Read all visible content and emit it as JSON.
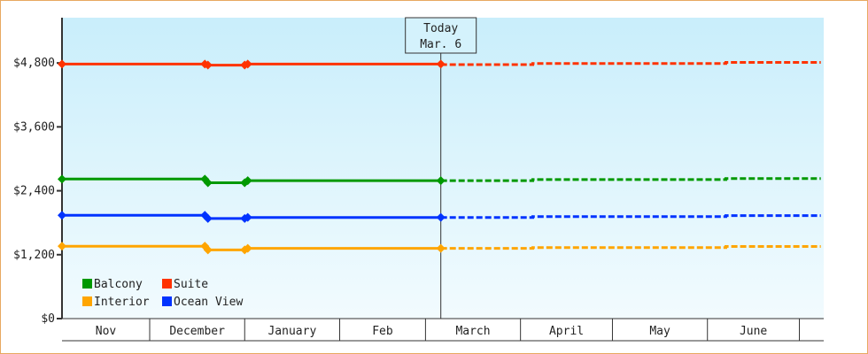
{
  "chart_data": {
    "type": "line",
    "title": "",
    "xlabel": "",
    "ylabel": "",
    "ylim": [
      0,
      5650
    ],
    "yticks": [
      0,
      1200,
      2400,
      3600,
      4800
    ],
    "ytick_labels": [
      "$0",
      "$1,200",
      "$2,400",
      "$3,600",
      "$4,800"
    ],
    "xtick_labels": [
      "Nov",
      "December",
      "January",
      "Feb",
      "March",
      "April",
      "May",
      "June"
    ],
    "xrange": [
      "Nov 1",
      "Jul 8"
    ],
    "grid": false,
    "legend_placement": "bottom-left",
    "annotation": {
      "line1": "Today",
      "line2": "Mar. 6",
      "date": "Mar 6"
    },
    "background": {
      "top": "#c9eefb",
      "bottom": "#f2fbfe"
    },
    "series": [
      {
        "name": "Balcony",
        "color": "#009900",
        "actual": [
          [
            "Nov 1",
            2620
          ],
          [
            "Dec 19",
            2620
          ],
          [
            "Dec 20",
            2550
          ],
          [
            "Jan 1",
            2550
          ],
          [
            "Jan 2",
            2590
          ],
          [
            "Mar 6",
            2590
          ]
        ],
        "projected": [
          [
            "Mar 6",
            2590
          ],
          [
            "Apr 5",
            2590
          ],
          [
            "Apr 5",
            2610
          ],
          [
            "Jun 7",
            2610
          ],
          [
            "Jun 7",
            2630
          ],
          [
            "Jul 8",
            2630
          ]
        ]
      },
      {
        "name": "Suite",
        "color": "#ff3300",
        "actual": [
          [
            "Nov 1",
            4780
          ],
          [
            "Dec 19",
            4780
          ],
          [
            "Dec 20",
            4760
          ],
          [
            "Jan 1",
            4760
          ],
          [
            "Jan 2",
            4780
          ],
          [
            "Mar 6",
            4780
          ]
        ],
        "projected": [
          [
            "Mar 6",
            4770
          ],
          [
            "Apr 5",
            4770
          ],
          [
            "Apr 5",
            4790
          ],
          [
            "Jun 7",
            4790
          ],
          [
            "Jun 7",
            4810
          ],
          [
            "Jul 8",
            4810
          ]
        ]
      },
      {
        "name": "Interior",
        "color": "#ffa500",
        "actual": [
          [
            "Nov 1",
            1360
          ],
          [
            "Dec 19",
            1360
          ],
          [
            "Dec 20",
            1290
          ],
          [
            "Jan 1",
            1290
          ],
          [
            "Jan 2",
            1320
          ],
          [
            "Mar 6",
            1320
          ]
        ],
        "projected": [
          [
            "Mar 6",
            1320
          ],
          [
            "Apr 5",
            1320
          ],
          [
            "Apr 5",
            1335
          ],
          [
            "Jun 7",
            1335
          ],
          [
            "Jun 7",
            1355
          ],
          [
            "Jul 8",
            1355
          ]
        ]
      },
      {
        "name": "Ocean View",
        "color": "#0033ff",
        "actual": [
          [
            "Nov 1",
            1940
          ],
          [
            "Dec 19",
            1940
          ],
          [
            "Dec 20",
            1880
          ],
          [
            "Jan 1",
            1880
          ],
          [
            "Jan 2",
            1900
          ],
          [
            "Mar 6",
            1900
          ]
        ],
        "projected": [
          [
            "Mar 6",
            1900
          ],
          [
            "Apr 5",
            1900
          ],
          [
            "Apr 5",
            1915
          ],
          [
            "Jun 7",
            1915
          ],
          [
            "Jun 7",
            1935
          ],
          [
            "Jul 8",
            1935
          ]
        ]
      }
    ]
  }
}
